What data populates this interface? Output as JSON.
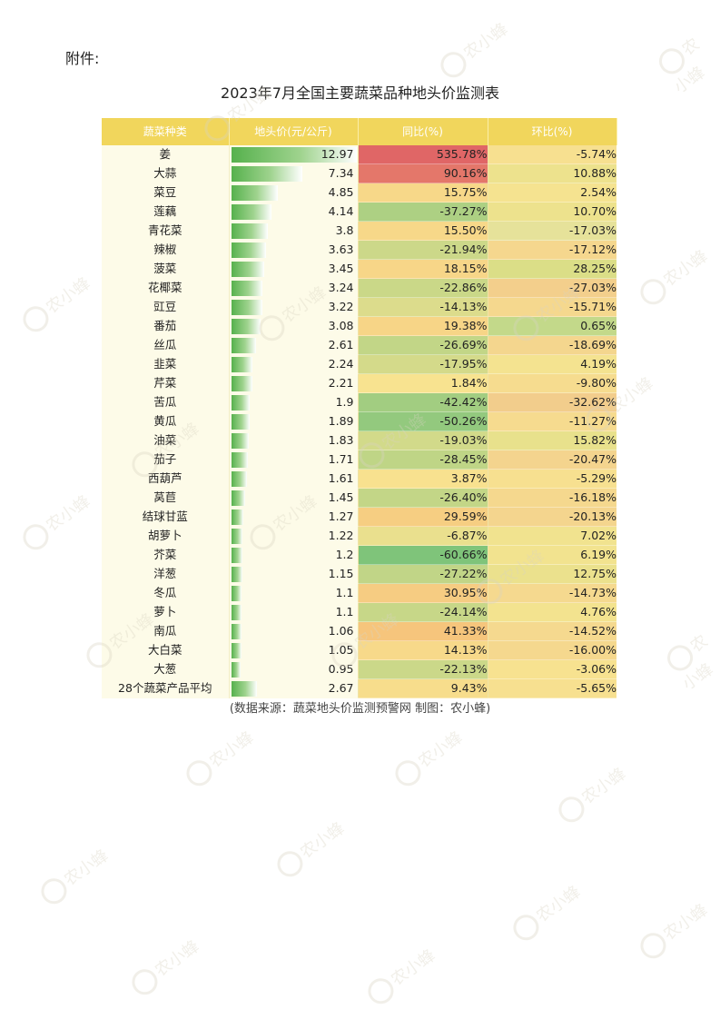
{
  "attachment_label": "附件:",
  "title": "2023年7月全国主要蔬菜品种地头价监测表",
  "headers": [
    "蔬菜种类",
    "地头价(元/公斤)",
    "同比(%)",
    "环比(%)"
  ],
  "price_max": 12.97,
  "rows": [
    {
      "name": "姜",
      "price": "12.97",
      "yoy": "535.78%",
      "mom": "-5.74%"
    },
    {
      "name": "大蒜",
      "price": "7.34",
      "yoy": "90.16%",
      "mom": "10.88%"
    },
    {
      "name": "菜豆",
      "price": "4.85",
      "yoy": "15.75%",
      "mom": "2.54%"
    },
    {
      "name": "莲藕",
      "price": "4.14",
      "yoy": "-37.27%",
      "mom": "10.70%"
    },
    {
      "name": "青花菜",
      "price": "3.8",
      "yoy": "15.50%",
      "mom": "-17.03%"
    },
    {
      "name": "辣椒",
      "price": "3.63",
      "yoy": "-21.94%",
      "mom": "-17.12%"
    },
    {
      "name": "菠菜",
      "price": "3.45",
      "yoy": "18.15%",
      "mom": "28.25%"
    },
    {
      "name": "花椰菜",
      "price": "3.24",
      "yoy": "-22.86%",
      "mom": "-27.03%"
    },
    {
      "name": "豇豆",
      "price": "3.22",
      "yoy": "-14.13%",
      "mom": "-15.71%"
    },
    {
      "name": "番茄",
      "price": "3.08",
      "yoy": "19.38%",
      "mom": "0.65%"
    },
    {
      "name": "丝瓜",
      "price": "2.61",
      "yoy": "-26.69%",
      "mom": "-18.69%"
    },
    {
      "name": "韭菜",
      "price": "2.24",
      "yoy": "-17.95%",
      "mom": "4.19%"
    },
    {
      "name": "芹菜",
      "price": "2.21",
      "yoy": "1.84%",
      "mom": "-9.80%"
    },
    {
      "name": "苦瓜",
      "price": "1.9",
      "yoy": "-42.42%",
      "mom": "-32.62%"
    },
    {
      "name": "黄瓜",
      "price": "1.89",
      "yoy": "-50.26%",
      "mom": "-11.27%"
    },
    {
      "name": "油菜",
      "price": "1.83",
      "yoy": "-19.03%",
      "mom": "15.82%"
    },
    {
      "name": "茄子",
      "price": "1.71",
      "yoy": "-28.45%",
      "mom": "-20.47%"
    },
    {
      "name": "西葫芦",
      "price": "1.61",
      "yoy": "3.87%",
      "mom": "-5.29%"
    },
    {
      "name": "莴苣",
      "price": "1.45",
      "yoy": "-26.40%",
      "mom": "-16.18%"
    },
    {
      "name": "结球甘蓝",
      "price": "1.27",
      "yoy": "29.59%",
      "mom": "-20.13%"
    },
    {
      "name": "胡萝卜",
      "price": "1.22",
      "yoy": "-6.87%",
      "mom": "7.02%"
    },
    {
      "name": "芥菜",
      "price": "1.2",
      "yoy": "-60.66%",
      "mom": "6.19%"
    },
    {
      "name": "洋葱",
      "price": "1.15",
      "yoy": "-27.22%",
      "mom": "12.75%"
    },
    {
      "name": "冬瓜",
      "price": "1.1",
      "yoy": "30.95%",
      "mom": "-14.73%"
    },
    {
      "name": "萝卜",
      "price": "1.1",
      "yoy": "-24.14%",
      "mom": "4.76%"
    },
    {
      "name": "南瓜",
      "price": "1.06",
      "yoy": "41.33%",
      "mom": "-14.52%"
    },
    {
      "name": "大白菜",
      "price": "1.05",
      "yoy": "14.13%",
      "mom": "-16.00%"
    },
    {
      "name": "大葱",
      "price": "0.95",
      "yoy": "-22.13%",
      "mom": "-3.06%"
    },
    {
      "name": "28个蔬菜产品平均",
      "price": "2.67",
      "yoy": "9.43%",
      "mom": "-5.65%"
    }
  ],
  "source": "(数据来源：蔬菜地头价监测预警网    制图：农小蜂)",
  "watermark_text": "农小蜂",
  "watermark_sub": "BEEDATA",
  "colors": {
    "header": "#f1d65c",
    "bar": "#56b14d",
    "red": "#e06666",
    "yellow": "#f7e08f",
    "green": "#7fc47a"
  }
}
